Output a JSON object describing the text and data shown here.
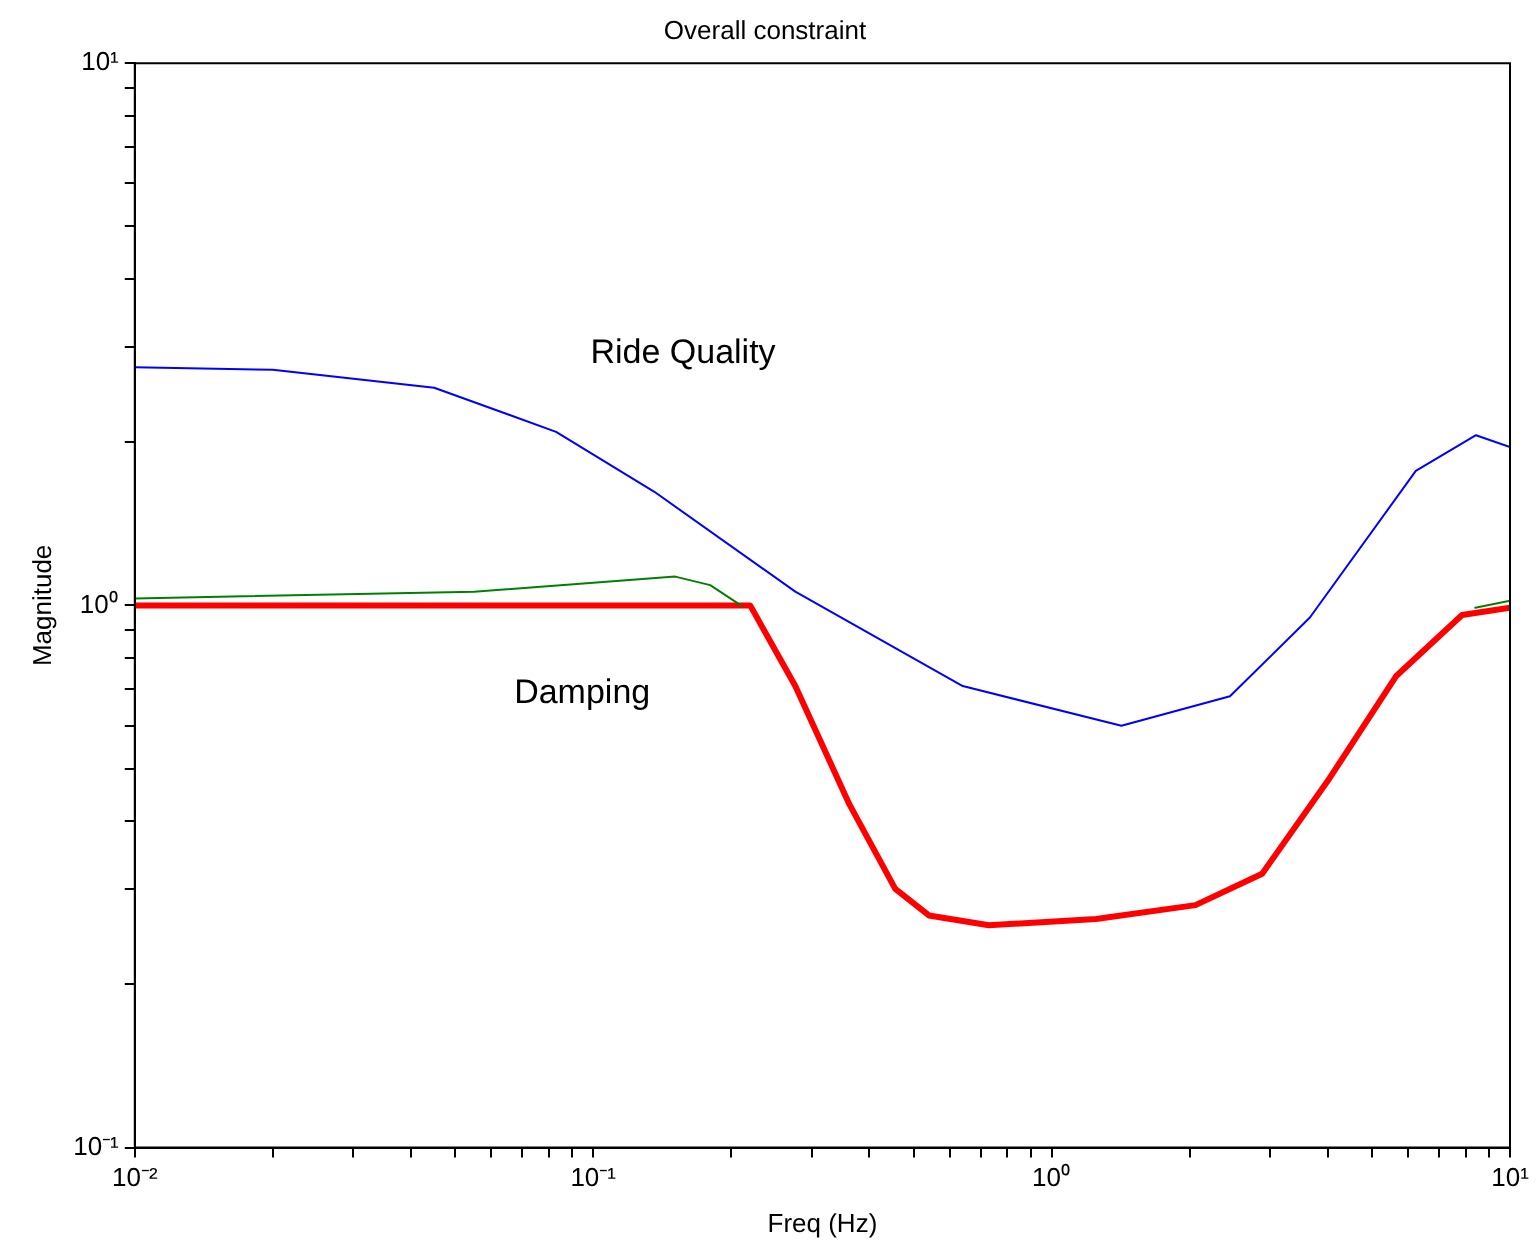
{
  "chart_data": {
    "type": "line",
    "title": "Overall constraint",
    "xlabel": "Freq (Hz)",
    "ylabel": "Magnitude",
    "log": "xy",
    "grid": false,
    "legend": false,
    "marker": "none",
    "line_style": "solid",
    "xlim": [
      0.01,
      10
    ],
    "ylim": [
      0.1,
      10
    ],
    "xticks": [
      {
        "value": 0.01,
        "label": "10⁻²"
      },
      {
        "value": 0.02,
        "label": null
      },
      {
        "value": 0.03,
        "label": null
      },
      {
        "value": 0.04,
        "label": null
      },
      {
        "value": 0.05,
        "label": null
      },
      {
        "value": 0.06,
        "label": null
      },
      {
        "value": 0.07,
        "label": null
      },
      {
        "value": 0.08,
        "label": null
      },
      {
        "value": 0.09,
        "label": null
      },
      {
        "value": 0.1,
        "label": "10⁻¹"
      },
      {
        "value": 0.2,
        "label": null
      },
      {
        "value": 0.3,
        "label": null
      },
      {
        "value": 0.4,
        "label": null
      },
      {
        "value": 0.5,
        "label": null
      },
      {
        "value": 0.6,
        "label": null
      },
      {
        "value": 0.7,
        "label": null
      },
      {
        "value": 0.8,
        "label": null
      },
      {
        "value": 0.9,
        "label": null
      },
      {
        "value": 1,
        "label": "10⁰"
      },
      {
        "value": 2,
        "label": null
      },
      {
        "value": 3,
        "label": null
      },
      {
        "value": 4,
        "label": null
      },
      {
        "value": 5,
        "label": null
      },
      {
        "value": 6,
        "label": null
      },
      {
        "value": 7,
        "label": null
      },
      {
        "value": 8,
        "label": null
      },
      {
        "value": 9,
        "label": null
      },
      {
        "value": 10,
        "label": "10¹"
      }
    ],
    "yticks": [
      {
        "value": 0.1,
        "label": "10⁻¹"
      },
      {
        "value": 0.2,
        "label": null
      },
      {
        "value": 0.3,
        "label": null
      },
      {
        "value": 0.4,
        "label": null
      },
      {
        "value": 0.5,
        "label": null
      },
      {
        "value": 0.6,
        "label": null
      },
      {
        "value": 0.7,
        "label": null
      },
      {
        "value": 0.8,
        "label": null
      },
      {
        "value": 0.9,
        "label": null
      },
      {
        "value": 1,
        "label": "10⁰"
      },
      {
        "value": 2,
        "label": null
      },
      {
        "value": 3,
        "label": null
      },
      {
        "value": 4,
        "label": null
      },
      {
        "value": 5,
        "label": null
      },
      {
        "value": 6,
        "label": null
      },
      {
        "value": 7,
        "label": null
      },
      {
        "value": 8,
        "label": null
      },
      {
        "value": 9,
        "label": null
      },
      {
        "value": 10,
        "label": "10¹"
      }
    ],
    "series": [
      {
        "name": "Ride Quality",
        "color": "#0000ff",
        "x": [
          0.01,
          0.02,
          0.045,
          0.083,
          0.136,
          0.276,
          0.64,
          1.42,
          2.45,
          3.66,
          6.23,
          8.43,
          10
        ],
        "values": [
          2.75,
          2.72,
          2.52,
          2.09,
          1.62,
          1.06,
          0.71,
          0.6,
          0.68,
          0.95,
          1.77,
          2.06,
          1.96
        ]
      },
      {
        "color": "#008000",
        "x": [
          0.01,
          0.055,
          0.151,
          0.18,
          0.21,
          0.3,
          8.4,
          10
        ],
        "values": [
          1.03,
          1.06,
          1.13,
          1.09,
          1.0,
          null,
          0.99,
          1.02
        ]
      },
      {
        "name": "Damping",
        "color": "#ff0000",
        "x": [
          0.01,
          0.22,
          0.276,
          0.362,
          0.456,
          0.54,
          0.73,
          1.25,
          2.06,
          2.88,
          4.04,
          5.64,
          7.86,
          10
        ],
        "values": [
          1.0,
          1.0,
          0.71,
          0.43,
          0.3,
          0.268,
          0.257,
          0.264,
          0.28,
          0.32,
          0.48,
          0.74,
          0.96,
          0.99
        ]
      }
    ]
  }
}
